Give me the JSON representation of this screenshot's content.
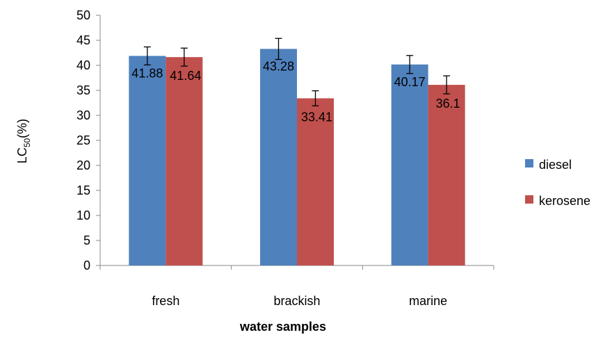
{
  "chart_data": {
    "type": "bar",
    "categories": [
      "fresh",
      "brackish",
      "marine"
    ],
    "series": [
      {
        "name": "diesel",
        "values": [
          41.88,
          43.28,
          40.17
        ],
        "errors": [
          1.8,
          2.1,
          1.8
        ],
        "labels": [
          "41.88",
          "43.28",
          "40.17"
        ],
        "color": "#4F81BD"
      },
      {
        "name": "kerosene",
        "values": [
          41.64,
          33.41,
          36.1
        ],
        "errors": [
          1.8,
          1.5,
          1.8
        ],
        "labels": [
          "41.64",
          "33.41",
          "36.1"
        ],
        "color": "#C0504D"
      }
    ],
    "xlabel": "water samples",
    "ylabel": {
      "main": "LC",
      "sub": "50",
      "suffix": "(%)"
    },
    "ylim": [
      0,
      50
    ],
    "yticks": [
      "0",
      "5",
      "10",
      "15",
      "20",
      "25",
      "30",
      "35",
      "40",
      "45",
      "50"
    ],
    "grid": false,
    "legend_position": "right"
  }
}
